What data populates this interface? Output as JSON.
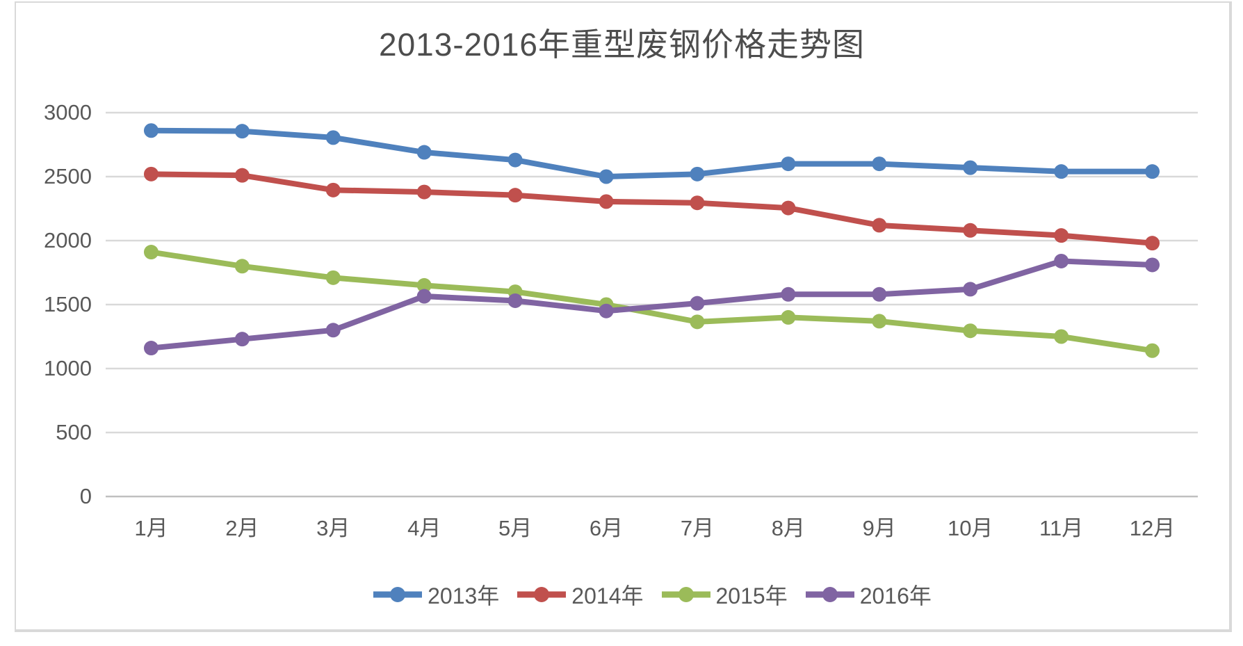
{
  "chart": {
    "background": "#ffffff",
    "frame_border_color": "#d9d9d9",
    "title_color": "#4d4d4d",
    "axis_text_color": "#595959",
    "gridline_color": "#d9d9d9",
    "axis_line_color": "#c0c0c0"
  },
  "chart_data": {
    "type": "line",
    "title": "2013-2016年重型废钢价格走势图",
    "xlabel": "",
    "ylabel": "",
    "grid": true,
    "legend_position": "bottom",
    "marker": "circle",
    "ylim": [
      0,
      3000
    ],
    "y_ticks": [
      0,
      500,
      1000,
      1500,
      2000,
      2500,
      3000
    ],
    "categories": [
      "1月",
      "2月",
      "3月",
      "4月",
      "5月",
      "6月",
      "7月",
      "8月",
      "9月",
      "10月",
      "11月",
      "12月"
    ],
    "series": [
      {
        "name": "2013年",
        "color": "#4f81bd",
        "values": [
          2860,
          2855,
          2805,
          2690,
          2630,
          2500,
          2520,
          2600,
          2600,
          2570,
          2540,
          2540
        ]
      },
      {
        "name": "2014年",
        "color": "#c0504d",
        "values": [
          2520,
          2510,
          2395,
          2380,
          2355,
          2305,
          2295,
          2255,
          2120,
          2080,
          2040,
          1980
        ]
      },
      {
        "name": "2015年",
        "color": "#9bbb59",
        "values": [
          1910,
          1800,
          1710,
          1650,
          1600,
          1500,
          1365,
          1400,
          1370,
          1295,
          1250,
          1140
        ]
      },
      {
        "name": "2016年",
        "color": "#8064a2",
        "values": [
          1160,
          1230,
          1300,
          1565,
          1530,
          1450,
          1510,
          1580,
          1580,
          1620,
          1840,
          1810
        ]
      }
    ]
  }
}
